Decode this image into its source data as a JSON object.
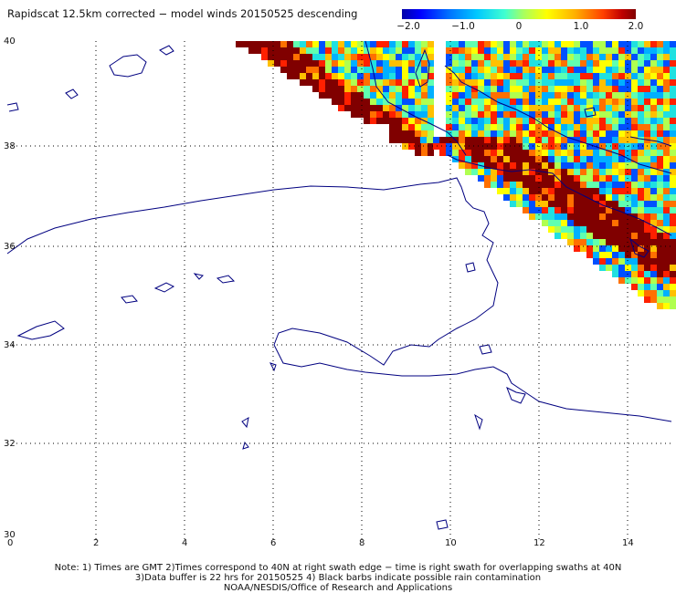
{
  "title": "Rapidscat 12.5km corrected − model winds 20150525 descending",
  "colorbar": {
    "labels": [
      "−2.0",
      "−1.0",
      "0",
      "1.0",
      "2.0"
    ],
    "min": -2.0,
    "max": 2.0
  },
  "axes": {
    "x_ticks": [
      "0",
      "2",
      "4",
      "6",
      "8",
      "10",
      "12",
      "14"
    ],
    "y_ticks": [
      "40",
      "38",
      "36",
      "34",
      "32",
      "30"
    ]
  },
  "notes": [
    "Note: 1) Times are GMT 2)Times correspond to 40N at right swath edge − time is right swath for overlapping swaths at 40N",
    "3)Data buffer is 22 hrs for 20150525 4) Black barbs indicate possible rain contamination",
    "NOAA/NESDIS/Office of Research and Applications"
  ]
}
